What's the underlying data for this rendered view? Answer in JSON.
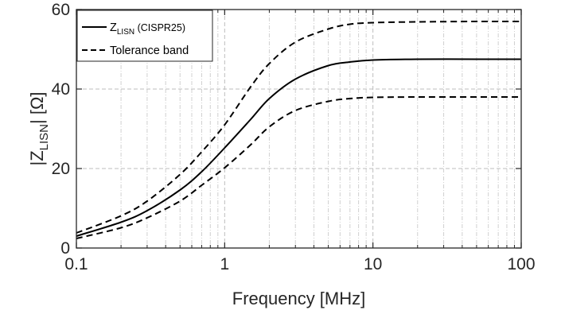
{
  "chart_data": {
    "type": "line",
    "xlabel": "Frequency [MHz]",
    "ylabel": {
      "pre": "|Z",
      "sub": "LISN",
      "post": "| [Ω]"
    },
    "xscale": "log",
    "xlim": [
      0.1,
      100
    ],
    "ylim": [
      0,
      60
    ],
    "xticks": [
      0.1,
      1,
      10,
      100
    ],
    "xtick_labels": [
      "0.1",
      "1",
      "10",
      "100"
    ],
    "yticks": [
      0,
      20,
      40,
      60
    ],
    "ytick_labels": [
      "0",
      "20",
      "40",
      "60"
    ],
    "grid": "on",
    "legend_position": "top-left",
    "legend": [
      {
        "label_main": "Z",
        "label_sub": "LISN",
        "label_rest": " (CISPR25)",
        "style": "solid"
      },
      {
        "label_main": "Tolerance band",
        "label_sub": "",
        "label_rest": "",
        "style": "dashed"
      }
    ],
    "x": [
      0.1,
      0.2,
      0.3,
      0.5,
      0.7,
      1,
      1.5,
      2,
      3,
      5,
      7,
      10,
      20,
      50,
      100
    ],
    "series": [
      {
        "style": "solid",
        "values": [
          3.0,
          6.5,
          9.4,
          14.6,
          19.2,
          25.2,
          32.4,
          37.6,
          42.5,
          45.9,
          46.8,
          47.3,
          47.5,
          47.5,
          47.5
        ]
      },
      {
        "style": "dashed",
        "values": [
          3.8,
          8.1,
          11.8,
          18.5,
          24.2,
          31.0,
          40.6,
          46.4,
          51.8,
          55.1,
          56.3,
          56.7,
          56.9,
          57.0,
          57.0
        ]
      },
      {
        "style": "dashed",
        "values": [
          2.4,
          5.1,
          7.6,
          11.8,
          15.8,
          20.2,
          26.0,
          30.5,
          34.6,
          36.9,
          37.6,
          37.9,
          38.0,
          38.0,
          38.0
        ]
      }
    ]
  }
}
